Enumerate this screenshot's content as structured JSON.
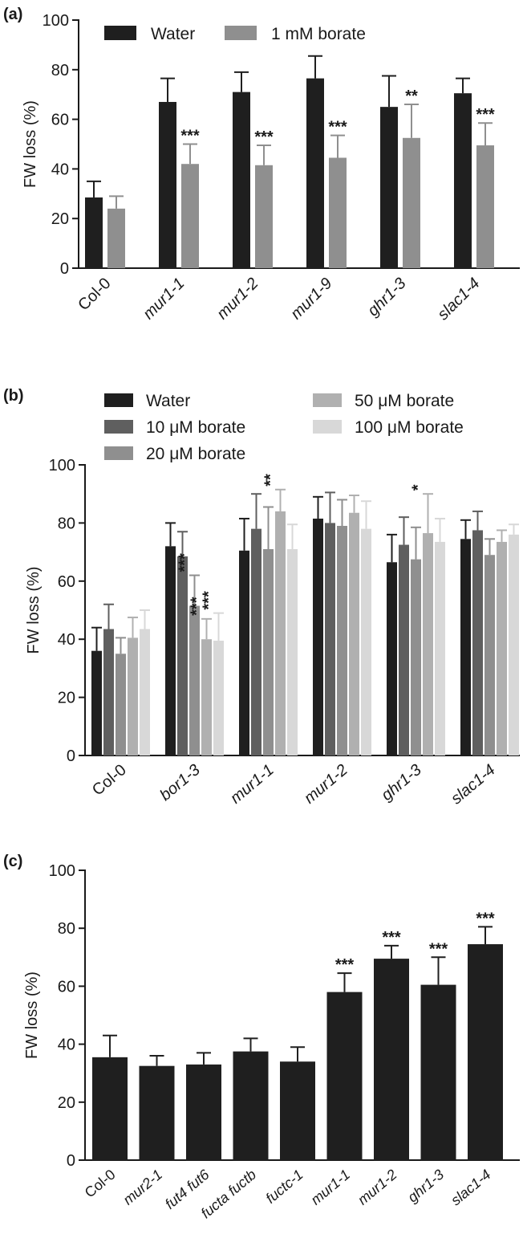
{
  "chart_data": [
    {
      "type": "bar",
      "panel_label": "(a)",
      "ylabel": "FW loss (%)",
      "ylim": [
        0,
        100
      ],
      "yticks": [
        "0",
        "20",
        "40",
        "60",
        "80",
        "100"
      ],
      "categories": [
        "Col-0",
        "mur1-1",
        "mur1-2",
        "mur1-9",
        "ghr1-3",
        "slac1-4"
      ],
      "italic_categories": [
        false,
        true,
        true,
        true,
        true,
        true
      ],
      "legend_position": "top",
      "series": [
        {
          "name": "Water",
          "color": "#1f1f1f",
          "values": [
            28.5,
            67,
            71,
            76.5,
            65,
            70.5
          ],
          "errors": [
            6.5,
            9.5,
            8,
            9,
            12.5,
            6
          ],
          "stars": [
            "",
            "",
            "",
            "",
            "",
            ""
          ]
        },
        {
          "name": "1 mM borate",
          "color": "#8f8f8f",
          "values": [
            24,
            42,
            41.5,
            44.5,
            52.5,
            49.5
          ],
          "errors": [
            5,
            8,
            8,
            9,
            13.5,
            9
          ],
          "stars": [
            "",
            "***",
            "***",
            "***",
            "**",
            "***"
          ]
        }
      ]
    },
    {
      "type": "bar",
      "panel_label": "(b)",
      "ylabel": "FW loss (%)",
      "ylim": [
        0,
        100
      ],
      "yticks": [
        "0",
        "20",
        "40",
        "60",
        "80",
        "100"
      ],
      "categories": [
        "Col-0",
        "bor1-3",
        "mur1-1",
        "mur1-2",
        "ghr1-3",
        "slac1-4"
      ],
      "italic_categories": [
        false,
        true,
        true,
        true,
        true,
        true
      ],
      "legend_position": "top",
      "series": [
        {
          "name": "Water",
          "color": "#1f1f1f",
          "values": [
            36,
            72,
            70.5,
            81.5,
            66.5,
            74.5
          ],
          "errors": [
            8,
            8,
            11,
            7.5,
            9.5,
            6.5
          ],
          "stars": [
            "",
            "",
            "",
            "",
            "",
            ""
          ]
        },
        {
          "name": "10 μM borate",
          "color": "#5f5f5f",
          "values": [
            43.5,
            68.5,
            78,
            80,
            72.5,
            77.5
          ],
          "errors": [
            8.5,
            8.5,
            12,
            10.5,
            9.5,
            6.5
          ],
          "stars": [
            "",
            "",
            "",
            "",
            "",
            ""
          ]
        },
        {
          "name": "20 μM borate",
          "color": "#8f8f8f",
          "values": [
            35,
            51.5,
            71,
            79,
            67.5,
            69
          ],
          "errors": [
            5.5,
            10.5,
            14.5,
            9,
            11,
            5.5
          ],
          "stars": [
            "",
            "***",
            "",
            "",
            "",
            ""
          ]
        },
        {
          "name": "50 μM borate",
          "color": "#b0b0b0",
          "values": [
            40.5,
            40,
            84,
            83.5,
            76.5,
            73.5
          ],
          "errors": [
            7,
            7,
            7.5,
            6,
            13.5,
            4
          ],
          "stars": [
            "",
            "***",
            "**",
            "",
            "*",
            ""
          ]
        },
        {
          "name": "100 μM borate",
          "color": "#d8d8d8",
          "values": [
            43.5,
            39.5,
            71,
            78,
            73.5,
            76
          ],
          "errors": [
            6.5,
            9.5,
            8.5,
            9.5,
            8,
            3.5
          ],
          "stars": [
            "",
            "***",
            "",
            "",
            "",
            ""
          ]
        }
      ]
    },
    {
      "type": "bar",
      "panel_label": "(c)",
      "ylabel": "FW loss (%)",
      "ylim": [
        0,
        100
      ],
      "yticks": [
        "0",
        "20",
        "40",
        "60",
        "80",
        "100"
      ],
      "categories": [
        "Col-0",
        "mur2-1",
        "fut4 fut6",
        "fucta fuctb",
        "fuctc-1",
        "mur1-1",
        "mur1-2",
        "ghr1-3",
        "slac1-4"
      ],
      "italic_categories": [
        false,
        true,
        true,
        true,
        true,
        true,
        true,
        true,
        true
      ],
      "series": [
        {
          "color": "#1f1f1f",
          "values": [
            35.5,
            32.5,
            33,
            37.5,
            34,
            58,
            69.5,
            60.5,
            74.5
          ],
          "errors": [
            7.5,
            3.5,
            4,
            4.5,
            5,
            6.5,
            4.5,
            9.5,
            6
          ],
          "stars": [
            "",
            "",
            "",
            "",
            "",
            "***",
            "***",
            "***",
            "***"
          ]
        }
      ]
    }
  ]
}
